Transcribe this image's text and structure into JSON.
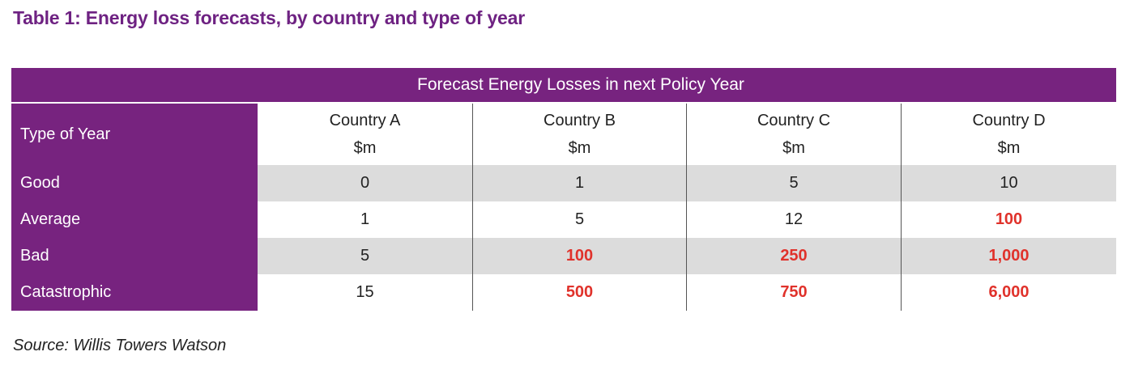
{
  "title": "Table 1: Energy loss forecasts, by country and type of year",
  "table": {
    "caption": "Forecast Energy Losses in next Policy Year",
    "row_header_label": "Type of Year",
    "columns": [
      {
        "name": "Country A",
        "unit": "$m"
      },
      {
        "name": "Country B",
        "unit": "$m"
      },
      {
        "name": "Country C",
        "unit": "$m"
      },
      {
        "name": "Country D",
        "unit": "$m"
      }
    ],
    "rows": [
      {
        "label": "Good",
        "values": [
          "0",
          "1",
          "5",
          "10"
        ],
        "highlighted": [
          false,
          false,
          false,
          false
        ]
      },
      {
        "label": "Average",
        "values": [
          "1",
          "5",
          "12",
          "100"
        ],
        "highlighted": [
          false,
          false,
          false,
          true
        ]
      },
      {
        "label": "Bad",
        "values": [
          "5",
          "100",
          "250",
          "1,000"
        ],
        "highlighted": [
          false,
          true,
          true,
          true
        ]
      },
      {
        "label": "Catastrophic",
        "values": [
          "15",
          "500",
          "750",
          "6,000"
        ],
        "highlighted": [
          false,
          true,
          true,
          true
        ]
      }
    ]
  },
  "source": "Source: Willis Towers Watson",
  "colors": {
    "brand_purple": "#77237f",
    "title_purple": "#6e2282",
    "highlight_red": "#e0322b",
    "shaded_row": "#dcdcdc"
  }
}
